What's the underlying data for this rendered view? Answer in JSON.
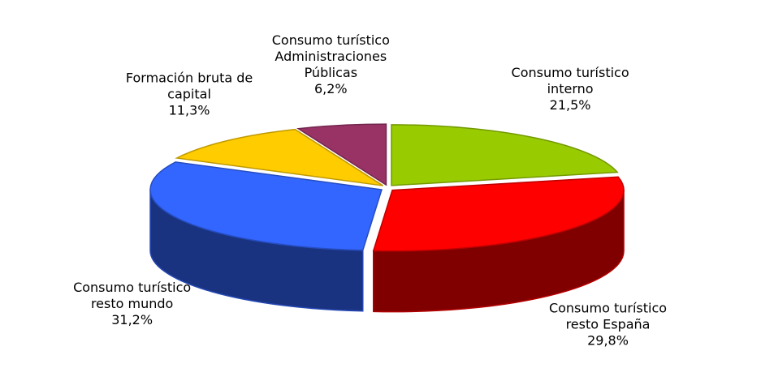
{
  "chart_data": {
    "type": "pie",
    "categories": [
      "Consumo turístico interno",
      "Consumo turístico resto España",
      "Consumo turístico resto mundo",
      "Formación bruta de capital",
      "Consumo turístico Administraciones Públicas"
    ],
    "values": [
      21.5,
      29.8,
      31.2,
      11.3,
      6.2
    ],
    "value_labels": [
      "21,5%",
      "29,8%",
      "31,2%",
      "11,3%",
      "6,2%"
    ],
    "colors": [
      "#99cc00",
      "#ff0000",
      "#3366ff",
      "#ffcc00",
      "#993366"
    ]
  }
}
